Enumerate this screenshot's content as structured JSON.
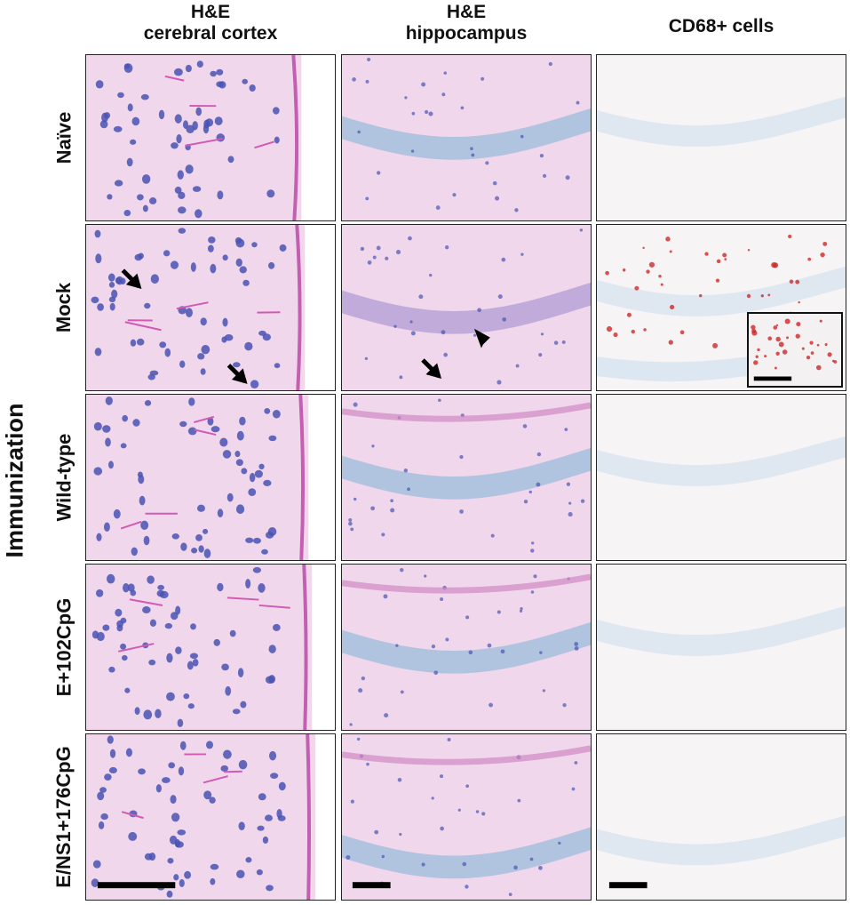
{
  "columns": {
    "he_cortex": {
      "line1": "H&E",
      "line2": "cerebral cortex"
    },
    "he_hippocampus": {
      "line1": "H&E",
      "line2": "hippocampus"
    },
    "cd68": {
      "line1": "CD68+ cells"
    }
  },
  "side_label": "Immunization",
  "rows": [
    {
      "label": "Naïve"
    },
    {
      "label": "Mock"
    },
    {
      "label": "Wild-type"
    },
    {
      "label": "E+102CpG"
    },
    {
      "label": "E/NS1+176CpG"
    }
  ],
  "colors": {
    "he_background": "#f1d7ec",
    "nucleus": "#4a54b4",
    "cd68_background": "#f6f4f5",
    "cd68_stain": "#d02828",
    "hematoxylin_light": "#a9c1de",
    "annotation": "#000000"
  },
  "annotations": {
    "mock_cortex": [
      "arrow",
      "arrow"
    ],
    "mock_hippocampus": [
      "arrow",
      "arrowhead"
    ],
    "mock_cd68": [
      "inset with scale bar"
    ]
  },
  "scale_bars": [
    "cortex bottom",
    "hippocampus bottom",
    "cd68 bottom",
    "cd68 inset"
  ]
}
